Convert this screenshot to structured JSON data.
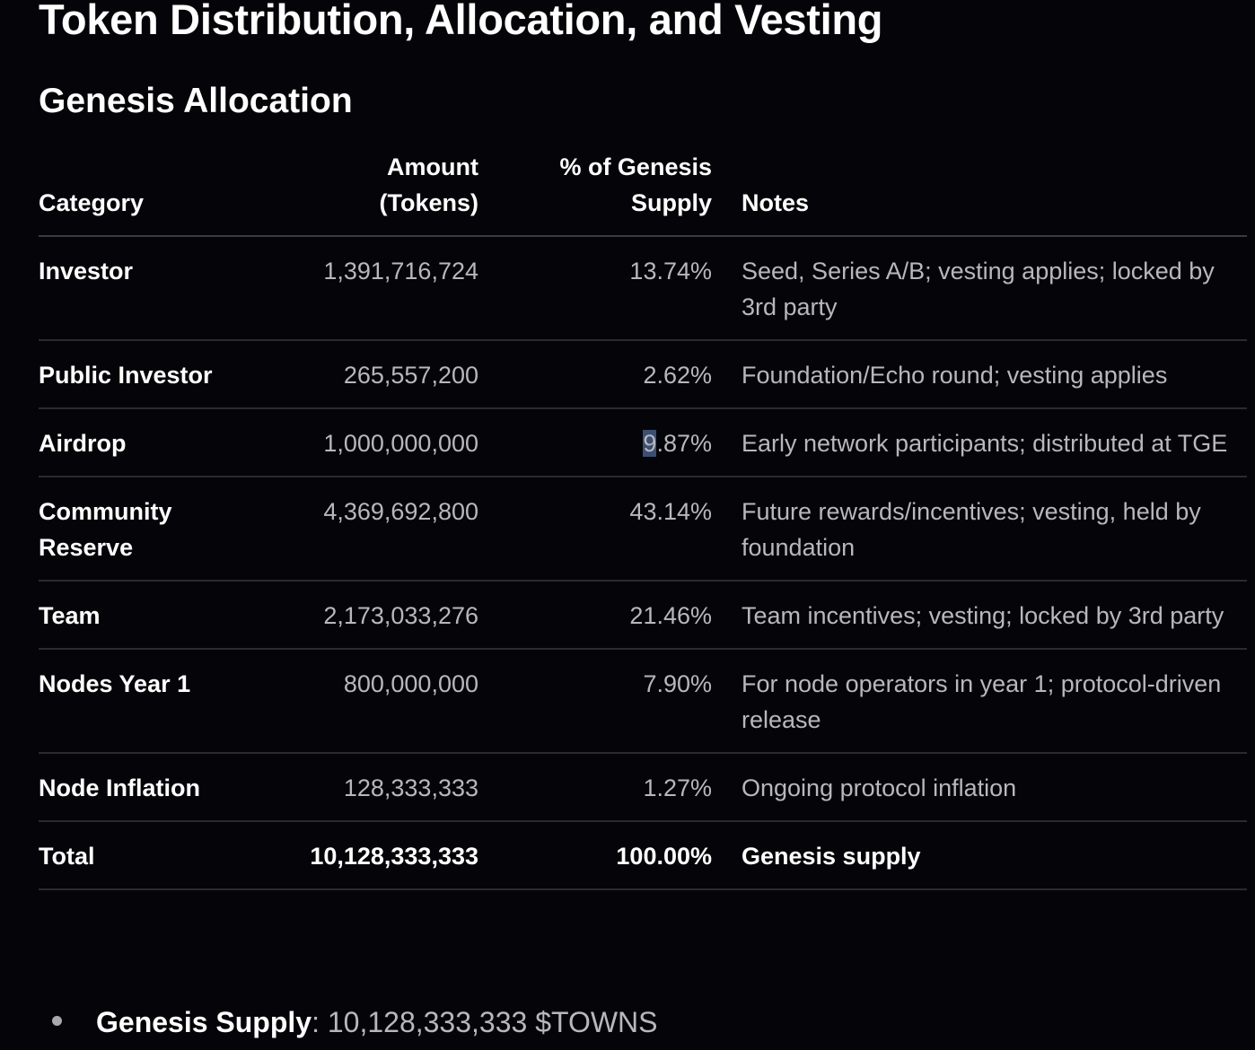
{
  "page_title": "Token Distribution, Allocation, and Vesting",
  "section_title": "Genesis Allocation",
  "table": {
    "headers": {
      "category": "Category",
      "amount_line1": "Amount",
      "amount_line2": "(Tokens)",
      "pct_line1": "% of Genesis",
      "pct_line2": "Supply",
      "notes": "Notes"
    },
    "rows": [
      {
        "category": "Investor",
        "amount": "1,391,716,724",
        "pct": "13.74%",
        "notes": "Seed, Series A/B; vesting applies; locked by 3rd party"
      },
      {
        "category": "Public Investor",
        "amount": "265,557,200",
        "pct": "2.62%",
        "notes": "Foundation/Echo round; vesting applies"
      },
      {
        "category": "Airdrop",
        "amount": "1,000,000,000",
        "pct_highlight": "9",
        "pct_rest": ".87%",
        "notes": "Early network participants; distributed at TGE"
      },
      {
        "category": "Community Reserve",
        "amount": "4,369,692,800",
        "pct": "43.14%",
        "notes": "Future rewards/incentives; vesting, held by foundation"
      },
      {
        "category": "Team",
        "amount": "2,173,033,276",
        "pct": "21.46%",
        "notes": "Team incentives; vesting; locked by 3rd party"
      },
      {
        "category": "Nodes Year 1",
        "amount": "800,000,000",
        "pct": "7.90%",
        "notes": "For node operators in year 1; protocol-driven release"
      },
      {
        "category": "Node Inflation",
        "amount": "128,333,333",
        "pct": "1.27%",
        "notes": "Ongoing protocol inflation"
      }
    ],
    "total": {
      "category": "Total",
      "amount": "10,128,333,333",
      "pct": "100.00%",
      "notes": "Genesis supply"
    }
  },
  "bullet": {
    "label": "Genesis Supply",
    "separator": ": ",
    "value": "10,128,333,333 $TOWNS"
  }
}
